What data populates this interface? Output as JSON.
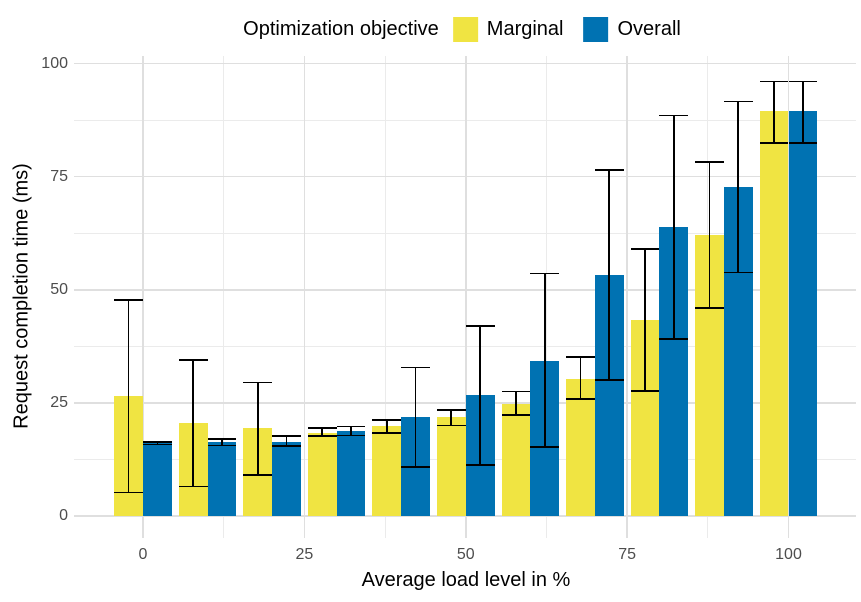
{
  "chart_data": {
    "type": "bar",
    "title": "",
    "legend_title": "Optimization objective",
    "legend_position": "top",
    "xlabel": "Average load level in %",
    "ylabel": "Request completion time (ms)",
    "x": [
      0,
      10,
      20,
      30,
      40,
      50,
      60,
      70,
      80,
      90,
      100
    ],
    "x_ticks": [
      0,
      25,
      50,
      75,
      100
    ],
    "y_ticks": [
      0,
      25,
      50,
      75,
      100
    ],
    "ylim": [
      0,
      100
    ],
    "grid": "major and minor, light gray on white",
    "error_bars": true,
    "series": [
      {
        "name": "Marginal",
        "color": "#F0E442",
        "values": [
          26.5,
          20.6,
          19.4,
          18.4,
          19.8,
          21.8,
          24.8,
          30.3,
          43.3,
          62.0,
          89.5
        ],
        "err_low": [
          5.2,
          6.5,
          9.1,
          17.6,
          18.4,
          20.0,
          22.3,
          25.8,
          27.6,
          45.9,
          82.5
        ],
        "err_high": [
          47.7,
          34.5,
          29.5,
          19.5,
          21.2,
          23.5,
          27.5,
          35.1,
          59.0,
          78.2,
          96.0
        ]
      },
      {
        "name": "Overall",
        "color": "#0072B2",
        "values": [
          16.1,
          16.3,
          16.4,
          18.7,
          21.8,
          26.7,
          34.3,
          53.3,
          63.9,
          72.8,
          89.5
        ],
        "err_low": [
          15.8,
          15.6,
          15.5,
          17.8,
          10.9,
          11.3,
          15.3,
          30.1,
          39.1,
          53.8,
          82.5
        ],
        "err_high": [
          16.4,
          17.0,
          17.7,
          19.8,
          32.8,
          42.0,
          53.6,
          76.5,
          88.5,
          91.6,
          96.0
        ]
      }
    ]
  },
  "colors": {
    "background": "#FFFFFF",
    "grid_major": "#DFDFDF",
    "grid_minor": "#EBEBEB",
    "tick_text": "#4D4D4D",
    "axis_title_text": "#000000",
    "error_bar": "#000000"
  }
}
